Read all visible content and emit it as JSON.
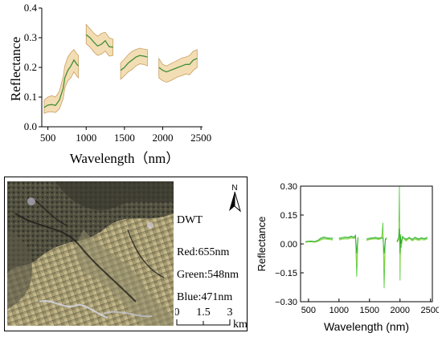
{
  "colors": {
    "mean_line": "#3f8f3a",
    "band_fill": "#f3ddb4",
    "band_edge": "#c9a063",
    "spectra": [
      "#5bcc3f",
      "#8fd84a",
      "#2eaa30"
    ]
  },
  "chart_data": [
    {
      "type": "area",
      "title": "",
      "xlabel": "Wavelength（nm）",
      "ylabel": "Reflectance",
      "xlim": [
        420,
        2520
      ],
      "ylim": [
        0.0,
        0.4
      ],
      "xticks": [
        500,
        1000,
        1500,
        2000,
        2500
      ],
      "yticks": [
        0.0,
        0.1,
        0.2,
        0.3,
        0.4
      ],
      "xtick_labels": [
        "500",
        "1000",
        "1500",
        "2000",
        "2500"
      ],
      "ytick_labels": [
        "0.0",
        "0.1",
        "0.2",
        "0.3",
        "0.4"
      ],
      "grid": false,
      "segments": [
        {
          "x": [
            450,
            500,
            550,
            600,
            650,
            700,
            720,
            760,
            800,
            840,
            880,
            900
          ],
          "mean": [
            0.065,
            0.073,
            0.075,
            0.072,
            0.09,
            0.13,
            0.165,
            0.19,
            0.205,
            0.225,
            0.21,
            0.205
          ],
          "upper": [
            0.09,
            0.1,
            0.105,
            0.1,
            0.12,
            0.17,
            0.205,
            0.235,
            0.25,
            0.26,
            0.245,
            0.24
          ],
          "lower": [
            0.045,
            0.05,
            0.05,
            0.048,
            0.06,
            0.095,
            0.13,
            0.155,
            0.165,
            0.185,
            0.17,
            0.165
          ]
        },
        {
          "x": [
            1000,
            1050,
            1100,
            1150,
            1200,
            1250,
            1300,
            1350
          ],
          "mean": [
            0.31,
            0.3,
            0.285,
            0.272,
            0.278,
            0.29,
            0.27,
            0.268
          ],
          "upper": [
            0.345,
            0.33,
            0.315,
            0.305,
            0.315,
            0.318,
            0.3,
            0.295
          ],
          "lower": [
            0.28,
            0.268,
            0.252,
            0.24,
            0.245,
            0.255,
            0.238,
            0.24
          ]
        },
        {
          "x": [
            1450,
            1500,
            1550,
            1600,
            1650,
            1700,
            1750,
            1800
          ],
          "mean": [
            0.19,
            0.2,
            0.215,
            0.225,
            0.235,
            0.24,
            0.238,
            0.235
          ],
          "upper": [
            0.215,
            0.228,
            0.243,
            0.254,
            0.26,
            0.265,
            0.262,
            0.26
          ],
          "lower": [
            0.16,
            0.172,
            0.185,
            0.193,
            0.205,
            0.212,
            0.21,
            0.205
          ]
        },
        {
          "x": [
            1950,
            2000,
            2050,
            2100,
            2150,
            2200,
            2250,
            2300,
            2350,
            2400,
            2450
          ],
          "mean": [
            0.2,
            0.19,
            0.185,
            0.19,
            0.195,
            0.2,
            0.205,
            0.21,
            0.21,
            0.225,
            0.23
          ],
          "upper": [
            0.23,
            0.21,
            0.205,
            0.212,
            0.218,
            0.225,
            0.232,
            0.235,
            0.24,
            0.255,
            0.26
          ],
          "lower": [
            0.165,
            0.155,
            0.15,
            0.155,
            0.162,
            0.168,
            0.172,
            0.178,
            0.175,
            0.19,
            0.2
          ]
        }
      ]
    },
    {
      "type": "line",
      "title": "",
      "xlabel": "Wavelength (nm)",
      "ylabel": "Reflectance",
      "xlim": [
        370,
        2530
      ],
      "ylim": [
        -0.3,
        0.3
      ],
      "xticks": [
        500,
        1000,
        1500,
        2000,
        2500
      ],
      "yticks": [
        -0.3,
        -0.15,
        0.0,
        0.15,
        0.3
      ],
      "xtick_labels": [
        "500",
        "1000",
        "1500",
        "2000",
        "2500"
      ],
      "ytick_labels": [
        "−0.30",
        "−0.15",
        "0.00",
        "0.15",
        "0.30"
      ],
      "grid": false,
      "segments": [
        {
          "x": [
            450,
            500,
            550,
            600,
            650,
            700,
            750,
            800,
            850,
            900
          ],
          "series": [
            [
              0.01,
              0.012,
              0.012,
              0.01,
              0.015,
              0.025,
              0.03,
              0.028,
              0.026,
              0.025
            ],
            [
              0.008,
              0.01,
              0.01,
              0.008,
              0.012,
              0.02,
              0.026,
              0.024,
              0.022,
              0.02
            ],
            [
              0.012,
              0.014,
              0.015,
              0.013,
              0.018,
              0.03,
              0.036,
              0.032,
              0.03,
              0.03
            ]
          ]
        },
        {
          "x": [
            1000,
            1050,
            1100,
            1150,
            1200,
            1250,
            1270,
            1290,
            1310
          ],
          "series": [
            [
              0.025,
              0.028,
              0.03,
              0.03,
              0.035,
              0.03,
              0.04,
              -0.17,
              0.03
            ],
            [
              0.02,
              0.024,
              0.026,
              0.025,
              0.03,
              0.028,
              0.035,
              -0.1,
              0.025
            ],
            [
              0.03,
              0.033,
              0.036,
              0.034,
              0.04,
              0.035,
              0.045,
              -0.05,
              0.035
            ]
          ]
        },
        {
          "x": [
            1450,
            1500,
            1550,
            1600,
            1650,
            1700,
            1720,
            1740,
            1760,
            1780
          ],
          "series": [
            [
              0.02,
              0.025,
              0.028,
              0.03,
              0.026,
              0.03,
              0.11,
              -0.23,
              0.02,
              0.03
            ],
            [
              0.018,
              0.022,
              0.025,
              0.026,
              0.022,
              0.028,
              0.06,
              -0.12,
              0.018,
              0.025
            ],
            [
              0.025,
              0.03,
              0.032,
              0.034,
              0.03,
              0.034,
              0.03,
              -0.05,
              0.025,
              0.032
            ]
          ]
        },
        {
          "x": [
            1950,
            1980,
            1990,
            2000,
            2010,
            2020,
            2040,
            2100,
            2150,
            2200,
            2250,
            2300,
            2350,
            2400,
            2450
          ],
          "series": [
            [
              0.01,
              0.03,
              0.3,
              -0.19,
              0.05,
              -0.02,
              0.04,
              0.02,
              0.035,
              0.02,
              0.03,
              0.022,
              0.028,
              0.024,
              0.03
            ],
            [
              0.008,
              0.02,
              0.12,
              -0.12,
              0.03,
              -0.01,
              0.03,
              0.015,
              0.028,
              0.016,
              0.024,
              0.018,
              0.022,
              0.02,
              0.025
            ],
            [
              0.012,
              0.035,
              0.08,
              -0.05,
              0.04,
              0.0,
              0.036,
              0.025,
              0.032,
              0.025,
              0.035,
              0.026,
              0.032,
              0.028,
              0.035
            ]
          ]
        }
      ]
    }
  ],
  "map": {
    "product_label": "DWT",
    "red_label": "Red:655nm",
    "green_label": "Green:548nm",
    "blue_label": "Blue:471nm",
    "north_label": "N",
    "scale_ticks": [
      "0",
      "1.5",
      "3"
    ],
    "scale_unit": "km"
  }
}
